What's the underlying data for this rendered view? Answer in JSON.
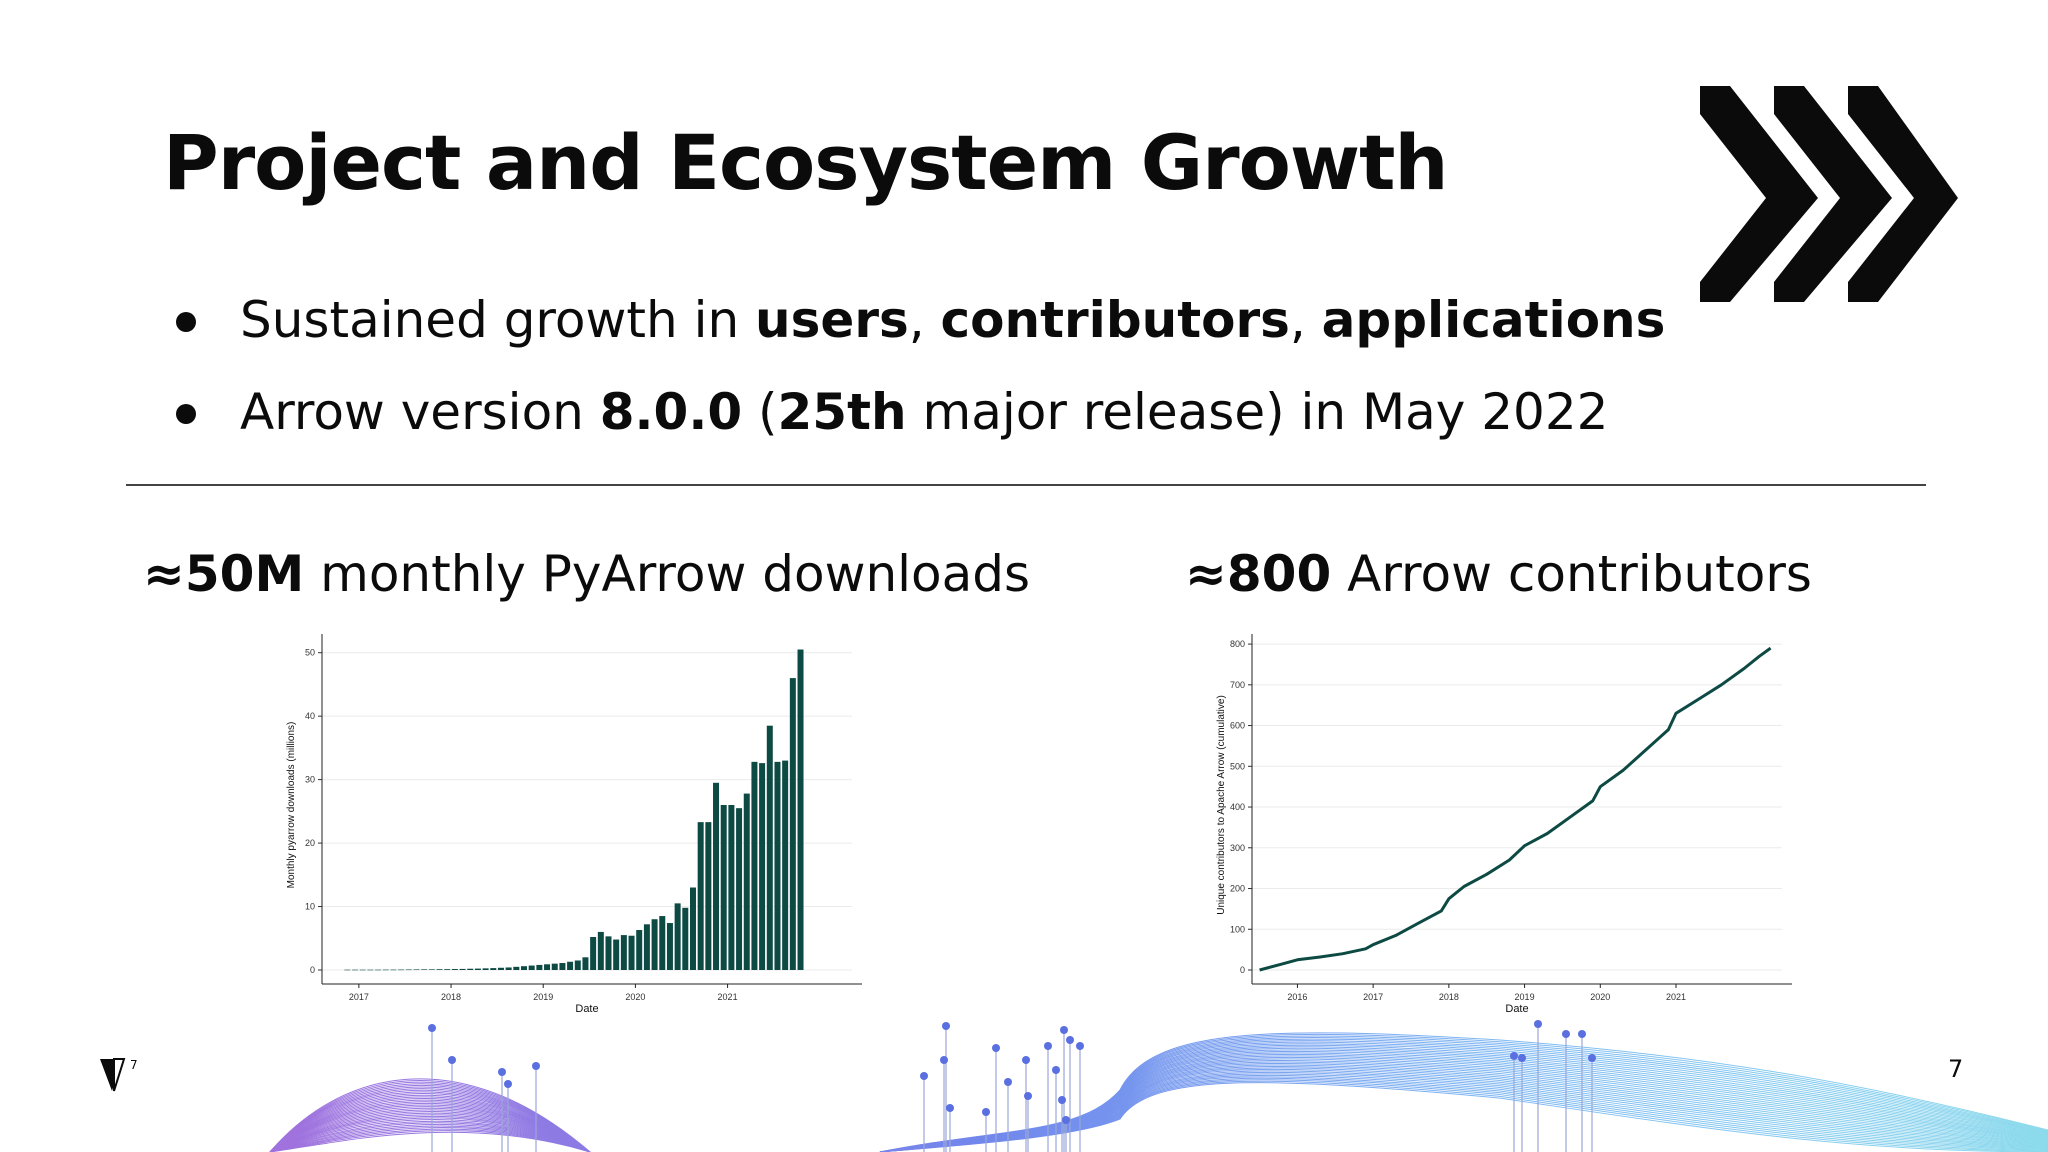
{
  "slide": {
    "title": "Project and Ecosystem Growth",
    "page_number": "7"
  },
  "bullets": [
    {
      "parts": [
        {
          "text": "Sustained growth in ",
          "bold": false
        },
        {
          "text": "users",
          "bold": true
        },
        {
          "text": ", ",
          "bold": false
        },
        {
          "text": "contributors",
          "bold": true
        },
        {
          "text": ", ",
          "bold": false
        },
        {
          "text": "applications",
          "bold": true
        }
      ]
    },
    {
      "parts": [
        {
          "text": "Arrow version ",
          "bold": false
        },
        {
          "text": "8.0.0",
          "bold": true
        },
        {
          "text": " (",
          "bold": false
        },
        {
          "text": "25th",
          "bold": true
        },
        {
          "text": " major release) in May 2022",
          "bold": false
        }
      ]
    }
  ],
  "stats": {
    "left": {
      "value": "≈50M",
      "label": " monthly PyArrow downloads"
    },
    "right": {
      "value": "≈800",
      "label": " Arrow contributors"
    }
  },
  "colors": {
    "series": "#0d4a44",
    "ink": "#0b0b0b",
    "grid": "#ebebeb"
  },
  "chart_data": [
    {
      "type": "bar",
      "xlabel": "Date",
      "ylabel": "Monthly pyarrow downloads (millions)",
      "ylim": [
        0,
        52
      ],
      "xlim": [
        2016.6,
        2022.35
      ],
      "y_ticks": [
        0,
        10,
        20,
        30,
        40,
        50
      ],
      "x_ticks": [
        2017,
        2018,
        2019,
        2020,
        2021
      ],
      "grid": true,
      "start": 2016.875,
      "step": 0.08333,
      "values": [
        0.05,
        0.05,
        0.05,
        0.05,
        0.05,
        0.06,
        0.06,
        0.07,
        0.08,
        0.09,
        0.1,
        0.1,
        0.12,
        0.13,
        0.15,
        0.17,
        0.2,
        0.22,
        0.26,
        0.3,
        0.35,
        0.4,
        0.5,
        0.6,
        0.7,
        0.8,
        0.9,
        1.0,
        1.1,
        1.3,
        1.5,
        2.0,
        5.2,
        6.0,
        5.3,
        4.8,
        5.5,
        5.4,
        6.3,
        7.2,
        8.0,
        8.5,
        7.4,
        10.5,
        9.8,
        13.0,
        23.3,
        23.3,
        29.5,
        26.0,
        26.0,
        25.5,
        27.8,
        32.8,
        32.6,
        38.5,
        32.8,
        33.0,
        46.0,
        50.5
      ]
    },
    {
      "type": "line",
      "xlabel": "Date",
      "ylabel": "Unique contributors to Apache Arrow (cumulative)",
      "ylim": [
        0,
        810
      ],
      "xlim": [
        2015.4,
        2022.4
      ],
      "y_ticks": [
        0,
        100,
        200,
        300,
        400,
        500,
        600,
        700,
        800
      ],
      "x_ticks": [
        2016,
        2017,
        2018,
        2019,
        2020,
        2021
      ],
      "grid": true,
      "x": [
        2015.5,
        2015.8,
        2016.0,
        2016.3,
        2016.6,
        2016.9,
        2017.0,
        2017.3,
        2017.6,
        2017.9,
        2018.0,
        2018.2,
        2018.5,
        2018.8,
        2019.0,
        2019.3,
        2019.6,
        2019.9,
        2020.0,
        2020.3,
        2020.6,
        2020.9,
        2021.0,
        2021.3,
        2021.6,
        2021.9,
        2022.1,
        2022.25
      ],
      "y": [
        0,
        15,
        25,
        32,
        40,
        52,
        62,
        85,
        115,
        145,
        175,
        205,
        235,
        270,
        305,
        335,
        375,
        415,
        450,
        490,
        540,
        590,
        630,
        665,
        700,
        740,
        770,
        790
      ]
    }
  ]
}
